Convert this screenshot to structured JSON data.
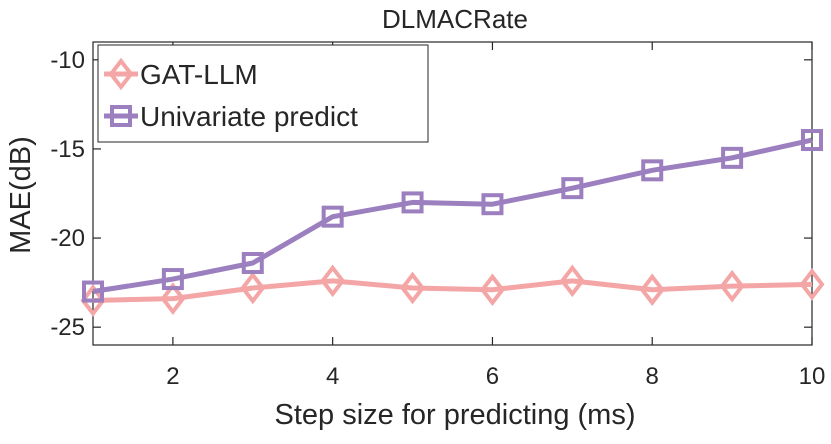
{
  "chart_data": {
    "type": "line",
    "title": "DLMACRate",
    "xlabel": "Step size for predicting (ms)",
    "ylabel": "MAE(dB)",
    "x": [
      1,
      2,
      3,
      4,
      5,
      6,
      7,
      8,
      9,
      10
    ],
    "xlim": [
      1,
      10
    ],
    "ylim": [
      -26,
      -9
    ],
    "xticks": [
      2,
      4,
      6,
      8,
      10
    ],
    "yticks": [
      -10,
      -15,
      -20,
      -25
    ],
    "xtick_labels": [
      "2",
      "4",
      "6",
      "8",
      "10"
    ],
    "ytick_labels": [
      "-10",
      "-15",
      "-20",
      "-25"
    ],
    "legend_position": "top-left",
    "grid": false,
    "series": [
      {
        "name": "GAT-LLM",
        "marker": "diamond",
        "color": "#f4a5a5",
        "values": [
          -23.5,
          -23.4,
          -22.8,
          -22.4,
          -22.8,
          -22.9,
          -22.4,
          -22.9,
          -22.7,
          -22.6
        ]
      },
      {
        "name": "Univariate predict",
        "marker": "square",
        "color": "#9b7fbf",
        "values": [
          -23.0,
          -22.3,
          -21.4,
          -18.8,
          -18.0,
          -18.1,
          -17.2,
          -16.2,
          -15.5,
          -14.5
        ]
      }
    ]
  }
}
